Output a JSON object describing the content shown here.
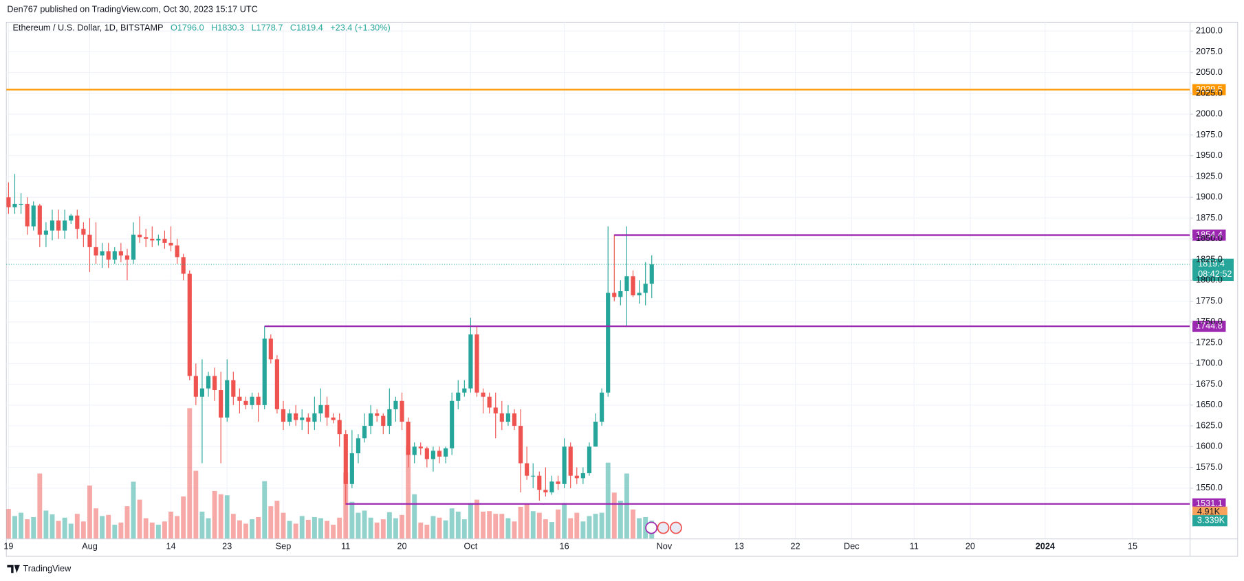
{
  "chart_data": {
    "type": "candlestick",
    "publisher": "Den767 published on TradingView.com, Oct 30, 2023 15:17 UTC",
    "title": "Ethereum / U.S. Dollar, 1D, BITSTAMP",
    "ohlc": [
      "O1796.0",
      "H1830.3",
      "L1778.7",
      "C1819.4"
    ],
    "change": "+23.4 (+1.30%)",
    "footer": "TradingView",
    "up_color": "#26a69a",
    "down_color": "#ef5350",
    "grid": true,
    "open": [
      1900,
      1888,
      1892,
      1892,
      1865,
      1890,
      1855,
      1860,
      1872,
      1860,
      1872,
      1878,
      1862,
      1855,
      1840,
      1830,
      1835,
      1825,
      1835,
      1830,
      1825,
      1855,
      1852,
      1850,
      1848,
      1850,
      1845,
      1842,
      1828,
      1808,
      1685,
      1660,
      1670,
      1685,
      1668,
      1635,
      1680,
      1660,
      1655,
      1650,
      1660,
      1650,
      1730,
      1705,
      1645,
      1630,
      1640,
      1632,
      1635,
      1630,
      1640,
      1650,
      1635,
      1632,
      1615,
      1555,
      1592,
      1610,
      1625,
      1640,
      1637,
      1625,
      1645,
      1655,
      1630,
      1590,
      1600,
      1598,
      1585,
      1595,
      1588,
      1598,
      1655,
      1665,
      1670,
      1735,
      1665,
      1660,
      1647,
      1640,
      1630,
      1640,
      1625,
      1580,
      1565,
      1565,
      1548,
      1545,
      1558,
      1555,
      1600,
      1565,
      1562,
      1568,
      1600,
      1630,
      1665,
      1785,
      1780,
      1787,
      1805,
      1782,
      1785,
      1796
    ],
    "high": [
      1918,
      1928,
      1905,
      1900,
      1895,
      1892,
      1870,
      1885,
      1885,
      1885,
      1880,
      1885,
      1870,
      1875,
      1870,
      1845,
      1845,
      1840,
      1845,
      1838,
      1870,
      1877,
      1862,
      1865,
      1855,
      1860,
      1865,
      1850,
      1832,
      1812,
      1700,
      1705,
      1690,
      1695,
      1690,
      1705,
      1690,
      1670,
      1660,
      1665,
      1665,
      1745,
      1735,
      1710,
      1655,
      1645,
      1650,
      1645,
      1640,
      1660,
      1670,
      1660,
      1640,
      1640,
      1620,
      1620,
      1615,
      1640,
      1650,
      1645,
      1640,
      1670,
      1660,
      1665,
      1635,
      1605,
      1605,
      1600,
      1600,
      1600,
      1600,
      1665,
      1680,
      1680,
      1755,
      1745,
      1670,
      1665,
      1665,
      1655,
      1650,
      1645,
      1645,
      1600,
      1580,
      1570,
      1575,
      1565,
      1565,
      1610,
      1605,
      1575,
      1575,
      1605,
      1640,
      1670,
      1865,
      1855,
      1800,
      1865,
      1812,
      1800,
      1822,
      1830.3
    ],
    "low": [
      1880,
      1880,
      1880,
      1855,
      1860,
      1840,
      1840,
      1848,
      1850,
      1850,
      1868,
      1850,
      1840,
      1810,
      1820,
      1815,
      1815,
      1820,
      1822,
      1800,
      1820,
      1845,
      1840,
      1840,
      1842,
      1838,
      1835,
      1820,
      1800,
      1680,
      1650,
      1580,
      1660,
      1655,
      1580,
      1630,
      1650,
      1640,
      1645,
      1645,
      1630,
      1645,
      1700,
      1640,
      1620,
      1625,
      1625,
      1620,
      1615,
      1620,
      1630,
      1625,
      1628,
      1600,
      1530,
      1550,
      1580,
      1605,
      1615,
      1630,
      1615,
      1615,
      1630,
      1620,
      1575,
      1580,
      1590,
      1575,
      1570,
      1580,
      1580,
      1590,
      1645,
      1660,
      1665,
      1660,
      1640,
      1640,
      1610,
      1620,
      1625,
      1620,
      1545,
      1560,
      1550,
      1535,
      1540,
      1542,
      1548,
      1550,
      1550,
      1555,
      1555,
      1565,
      1600,
      1625,
      1660,
      1775,
      1770,
      1745,
      1780,
      1772,
      1770,
      1778.7
    ],
    "close": [
      1888,
      1892,
      1892,
      1865,
      1890,
      1855,
      1860,
      1872,
      1860,
      1872,
      1878,
      1862,
      1855,
      1840,
      1830,
      1835,
      1825,
      1835,
      1830,
      1825,
      1855,
      1852,
      1850,
      1848,
      1850,
      1845,
      1842,
      1828,
      1808,
      1685,
      1660,
      1670,
      1685,
      1668,
      1635,
      1680,
      1660,
      1655,
      1650,
      1660,
      1650,
      1730,
      1705,
      1645,
      1630,
      1640,
      1632,
      1635,
      1630,
      1640,
      1650,
      1635,
      1632,
      1615,
      1555,
      1592,
      1610,
      1625,
      1640,
      1637,
      1625,
      1645,
      1655,
      1630,
      1590,
      1600,
      1598,
      1585,
      1595,
      1588,
      1598,
      1655,
      1665,
      1670,
      1735,
      1665,
      1660,
      1647,
      1640,
      1630,
      1640,
      1625,
      1580,
      1565,
      1565,
      1548,
      1545,
      1558,
      1555,
      1600,
      1565,
      1562,
      1568,
      1600,
      1630,
      1665,
      1785,
      1780,
      1787,
      1805,
      1782,
      1785,
      1796,
      1819.4
    ],
    "volume": [
      5500,
      4200,
      4800,
      3600,
      4000,
      12000,
      5200,
      4500,
      3300,
      3900,
      2800,
      4600,
      3200,
      9800,
      5600,
      4200,
      4400,
      2600,
      3000,
      6000,
      10500,
      7200,
      3800,
      3000,
      2600,
      3200,
      5000,
      4200,
      7800,
      24000,
      12500,
      5000,
      3800,
      8800,
      8200,
      8000,
      4600,
      3400,
      2800,
      3600,
      4000,
      10600,
      6000,
      7000,
      4800,
      3300,
      2800,
      4200,
      3500,
      4000,
      3800,
      3300,
      2600,
      3900,
      12200,
      6800,
      4800,
      5200,
      3900,
      3000,
      3600,
      4900,
      3800,
      4400,
      17000,
      8200,
      3000,
      2600,
      4200,
      3900,
      3400,
      5600,
      5000,
      3600,
      6600,
      7200,
      5000,
      5100,
      4600,
      4600,
      3800,
      3200,
      5900,
      6500,
      5100,
      4800,
      3600,
      3100,
      5400,
      6600,
      3800,
      4800,
      3200,
      4200,
      4600,
      4800,
      14000,
      8500,
      7000,
      12000,
      5400,
      3800,
      4000,
      3339
    ],
    "volume_labels": [
      {
        "value": 4910,
        "label": "4.91K",
        "color": "#f7a35c"
      },
      {
        "value": 3339,
        "label": "3.339K",
        "color": "#26a69a"
      }
    ],
    "countdown": "08:42:52",
    "levels": [
      {
        "value": 2029.5,
        "color": "#ff9800"
      },
      {
        "value": 1854.4,
        "color": "#9c27b0",
        "from": 97
      },
      {
        "value": 1744.8,
        "color": "#9c27b0",
        "from": 41
      },
      {
        "value": 1531.1,
        "color": "#9c27b0",
        "from": 54
      }
    ],
    "xlim": [
      -0.35,
      189.2
    ],
    "ylim": [
      1489,
      2110.5
    ],
    "xticks": [
      {
        "value": 0,
        "label": "19"
      },
      {
        "value": 13,
        "label": "Aug"
      },
      {
        "value": 26,
        "label": "14"
      },
      {
        "value": 35,
        "label": "23"
      },
      {
        "value": 44,
        "label": "Sep"
      },
      {
        "value": 54,
        "label": "11"
      },
      {
        "value": 63,
        "label": "20"
      },
      {
        "value": 74,
        "label": "Oct"
      },
      {
        "value": 89,
        "label": "16"
      },
      {
        "value": 105,
        "label": "Nov"
      },
      {
        "value": 117,
        "label": "13"
      },
      {
        "value": 126,
        "label": "22"
      },
      {
        "value": 135,
        "label": "Dec"
      },
      {
        "value": 145,
        "label": "11"
      },
      {
        "value": 154,
        "label": "20"
      },
      {
        "value": 166,
        "label": "2024"
      },
      {
        "value": 180,
        "label": "15"
      }
    ],
    "yticks": [
      {
        "value": 1550,
        "label": "1550.0"
      },
      {
        "value": 1575,
        "label": "1575.0"
      },
      {
        "value": 1600,
        "label": "1600.0"
      },
      {
        "value": 1625,
        "label": "1625.0"
      },
      {
        "value": 1650,
        "label": "1650.0"
      },
      {
        "value": 1675,
        "label": "1675.0"
      },
      {
        "value": 1700,
        "label": "1700.0"
      },
      {
        "value": 1725,
        "label": "1725.0"
      },
      {
        "value": 1750,
        "label": "1750.0"
      },
      {
        "value": 1775,
        "label": "1775.0"
      },
      {
        "value": 1800,
        "label": "1800.0"
      },
      {
        "value": 1825,
        "label": "1825.0"
      },
      {
        "value": 1850,
        "label": "1850.0"
      },
      {
        "value": 1875,
        "label": "1875.0"
      },
      {
        "value": 1900,
        "label": "1900.0"
      },
      {
        "value": 1925,
        "label": "1925.0"
      },
      {
        "value": 1950,
        "label": "1950.0"
      },
      {
        "value": 1975,
        "label": "1975.0"
      },
      {
        "value": 2000,
        "label": "2000.0"
      },
      {
        "value": 2025,
        "label": "2025.0"
      },
      {
        "value": 2050,
        "label": "2050.0"
      },
      {
        "value": 2075,
        "label": "2075.0"
      },
      {
        "value": 2100,
        "label": "2100.0"
      }
    ]
  }
}
